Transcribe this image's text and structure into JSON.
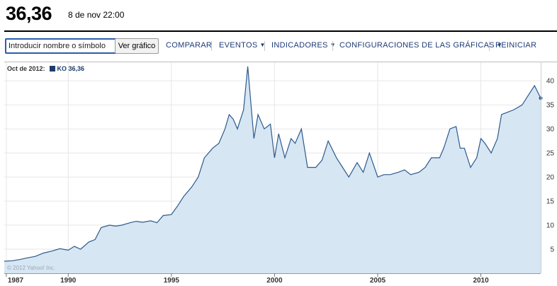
{
  "header": {
    "price": "36,36",
    "timestamp": "8 de nov 22:00"
  },
  "toolbar": {
    "search_placeholder": "Introducir nombre o símbolo",
    "view_button": "Ver gráfico",
    "items": [
      {
        "label": "COMPARAR",
        "dropdown": false
      },
      {
        "label": "EVENTOS",
        "dropdown": true
      },
      {
        "label": "INDICADORES",
        "dropdown": true
      },
      {
        "label": "CONFIGURACIONES DE LAS GRÁFICAS",
        "dropdown": true
      },
      {
        "label": "REINICIAR",
        "dropdown": false
      }
    ]
  },
  "legend": {
    "date": "Oct de 2012:",
    "series": "KO 36,36",
    "color": "#1d3c6a"
  },
  "watermark": "© 2012 Yahoo! Inc.",
  "chart_data": {
    "type": "area",
    "xlabels": [
      {
        "year": 1987,
        "label": "1987"
      },
      {
        "year": 1990,
        "label": "1990"
      },
      {
        "year": 1995,
        "label": "1995"
      },
      {
        "year": 2000,
        "label": "2000"
      },
      {
        "year": 2005,
        "label": "2005"
      },
      {
        "year": 2010,
        "label": "2010"
      }
    ],
    "yticks": [
      5,
      10,
      15,
      20,
      25,
      30,
      35,
      40
    ],
    "ylim": [
      0,
      44
    ],
    "xlim": [
      1986.9,
      2012.9
    ],
    "line_color": "#2e5a8c",
    "fill_color": "#d6e6f3",
    "grid": true,
    "legend_position": "top-left",
    "series": [
      {
        "name": "KO",
        "x": [
          1986.9,
          1987.3,
          1987.7,
          1988,
          1988.4,
          1988.8,
          1989.2,
          1989.6,
          1990,
          1990.3,
          1990.6,
          1991,
          1991.3,
          1991.6,
          1992,
          1992.3,
          1992.6,
          1993,
          1993.3,
          1993.6,
          1994,
          1994.3,
          1994.6,
          1995,
          1995.3,
          1995.6,
          1996,
          1996.3,
          1996.6,
          1997,
          1997.3,
          1997.6,
          1997.8,
          1998,
          1998.2,
          1998.5,
          1998.7,
          1999,
          1999.2,
          1999.5,
          1999.8,
          2000,
          2000.2,
          2000.5,
          2000.8,
          2001,
          2001.3,
          2001.6,
          2002,
          2002.3,
          2002.6,
          2003,
          2003.3,
          2003.6,
          2004,
          2004.3,
          2004.6,
          2005,
          2005.3,
          2005.6,
          2006,
          2006.3,
          2006.6,
          2007,
          2007.3,
          2007.6,
          2008,
          2008.2,
          2008.5,
          2008.8,
          2009,
          2009.2,
          2009.5,
          2009.8,
          2010,
          2010.2,
          2010.5,
          2010.8,
          2011,
          2011.3,
          2011.6,
          2012,
          2012.3,
          2012.6,
          2012.9
        ],
        "y": [
          2.5,
          2.6,
          2.9,
          3.2,
          3.5,
          4.2,
          4.6,
          5.1,
          4.8,
          5.6,
          5,
          6.5,
          7,
          9.5,
          10,
          9.8,
          10,
          10.5,
          10.8,
          10.6,
          10.9,
          10.5,
          12,
          12.2,
          14,
          16,
          18,
          20,
          24,
          26,
          27,
          30,
          33,
          32,
          30,
          34,
          43,
          28,
          33,
          30,
          31,
          24,
          29,
          24,
          28,
          27,
          30,
          22,
          22,
          23.5,
          27.5,
          24,
          22,
          20,
          23,
          21,
          25,
          20,
          20.5,
          20.5,
          21,
          21.5,
          20.5,
          21,
          22,
          24,
          24,
          26,
          30,
          30.5,
          26,
          26,
          22,
          24,
          28,
          27,
          25,
          28,
          33,
          33.5,
          34,
          35,
          37,
          39,
          36.4
        ]
      }
    ]
  }
}
